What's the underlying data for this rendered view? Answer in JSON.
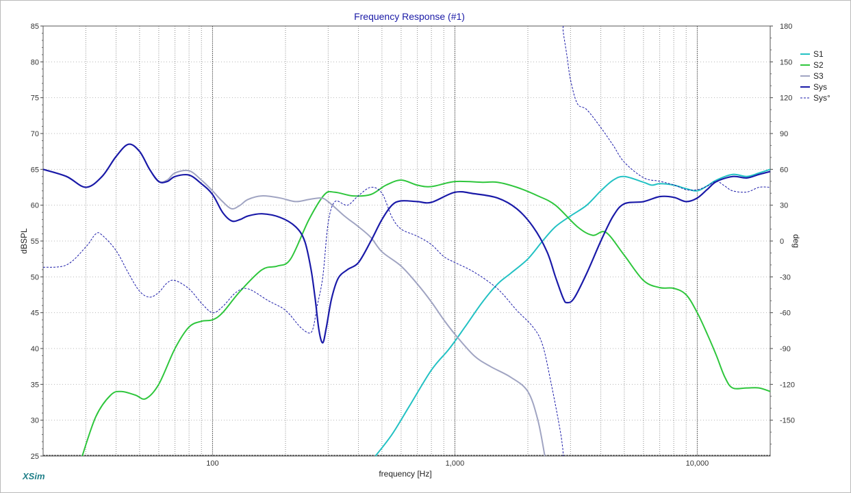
{
  "app": {
    "brand": "XSim"
  },
  "chart_data": {
    "type": "line",
    "title": "Frequency Response (#1)",
    "xlabel": "frequency [Hz]",
    "ylabel": "dBSPL",
    "y2label": "deg",
    "xscale": "log",
    "xlim": [
      20,
      20000
    ],
    "ylim": [
      25,
      85
    ],
    "y2lim": [
      -180,
      180
    ],
    "x_tick_labels": [
      {
        "value": 100,
        "label": "100"
      },
      {
        "value": 1000,
        "label": "1,000"
      },
      {
        "value": 10000,
        "label": "10,000"
      }
    ],
    "y_ticks": [
      25,
      30,
      35,
      40,
      45,
      50,
      55,
      60,
      65,
      70,
      75,
      80,
      85
    ],
    "y2_ticks": [
      -150,
      -120,
      -90,
      -60,
      -30,
      0,
      30,
      60,
      90,
      120,
      150,
      180
    ],
    "grid": true,
    "legend_position": "right",
    "series": [
      {
        "name": "S1",
        "color": "#22c1c3",
        "axis": "left",
        "style": "solid",
        "points": [
          [
            470,
            25
          ],
          [
            550,
            28
          ],
          [
            650,
            32
          ],
          [
            800,
            37
          ],
          [
            950,
            40
          ],
          [
            1100,
            43
          ],
          [
            1300,
            46.5
          ],
          [
            1500,
            49
          ],
          [
            1700,
            50.5
          ],
          [
            2000,
            52.5
          ],
          [
            2300,
            55
          ],
          [
            2600,
            57
          ],
          [
            3000,
            58.5
          ],
          [
            3500,
            60
          ],
          [
            4000,
            62
          ],
          [
            4500,
            63.5
          ],
          [
            5000,
            64
          ],
          [
            6000,
            63.2
          ],
          [
            6500,
            62.8
          ],
          [
            7000,
            63
          ],
          [
            8000,
            62.8
          ],
          [
            9000,
            62.3
          ],
          [
            10000,
            62
          ],
          [
            11000,
            62.7
          ],
          [
            12000,
            63.5
          ],
          [
            14000,
            64.3
          ],
          [
            16000,
            64
          ],
          [
            18000,
            64.5
          ],
          [
            20000,
            65
          ]
        ]
      },
      {
        "name": "S2",
        "color": "#2ec63c",
        "axis": "left",
        "style": "solid",
        "points": [
          [
            29,
            25
          ],
          [
            33,
            30.5
          ],
          [
            38,
            33.5
          ],
          [
            42,
            34
          ],
          [
            48,
            33.5
          ],
          [
            53,
            33
          ],
          [
            60,
            35
          ],
          [
            70,
            40
          ],
          [
            80,
            43
          ],
          [
            90,
            43.8
          ],
          [
            100,
            44
          ],
          [
            110,
            45
          ],
          [
            130,
            48
          ],
          [
            160,
            51
          ],
          [
            185,
            51.5
          ],
          [
            210,
            52.5
          ],
          [
            250,
            58
          ],
          [
            290,
            61.5
          ],
          [
            320,
            61.8
          ],
          [
            380,
            61.3
          ],
          [
            450,
            61.5
          ],
          [
            520,
            62.8
          ],
          [
            600,
            63.5
          ],
          [
            700,
            62.8
          ],
          [
            800,
            62.6
          ],
          [
            1000,
            63.3
          ],
          [
            1300,
            63.2
          ],
          [
            1500,
            63.2
          ],
          [
            1800,
            62.5
          ],
          [
            2200,
            61.3
          ],
          [
            2600,
            60
          ],
          [
            3200,
            57
          ],
          [
            3700,
            55.8
          ],
          [
            4200,
            56.2
          ],
          [
            5000,
            53
          ],
          [
            6000,
            49.5
          ],
          [
            7000,
            48.5
          ],
          [
            8000,
            48.4
          ],
          [
            9000,
            47.5
          ],
          [
            10000,
            45
          ],
          [
            11000,
            42
          ],
          [
            12000,
            39
          ],
          [
            13000,
            36
          ],
          [
            14000,
            34.5
          ],
          [
            16000,
            34.5
          ],
          [
            18000,
            34.5
          ],
          [
            20000,
            34
          ]
        ]
      },
      {
        "name": "S3",
        "color": "#a0a4c2",
        "axis": "left",
        "style": "solid",
        "points": [
          [
            20,
            65
          ],
          [
            25,
            64
          ],
          [
            30,
            62.5
          ],
          [
            35,
            64
          ],
          [
            40,
            66.8
          ],
          [
            45,
            68.5
          ],
          [
            50,
            67.5
          ],
          [
            55,
            65
          ],
          [
            60,
            63.3
          ],
          [
            65,
            63.5
          ],
          [
            70,
            64.5
          ],
          [
            80,
            64.8
          ],
          [
            90,
            63.5
          ],
          [
            100,
            62
          ],
          [
            110,
            60.5
          ],
          [
            120,
            59.5
          ],
          [
            130,
            60
          ],
          [
            140,
            60.8
          ],
          [
            160,
            61.3
          ],
          [
            190,
            61
          ],
          [
            220,
            60.5
          ],
          [
            250,
            60.8
          ],
          [
            280,
            61
          ],
          [
            300,
            60.5
          ],
          [
            350,
            58.5
          ],
          [
            400,
            57
          ],
          [
            450,
            55.5
          ],
          [
            500,
            53.5
          ],
          [
            600,
            51.5
          ],
          [
            700,
            49
          ],
          [
            800,
            46.5
          ],
          [
            900,
            44
          ],
          [
            1000,
            42
          ],
          [
            1200,
            39
          ],
          [
            1400,
            37.5
          ],
          [
            1700,
            36
          ],
          [
            2000,
            34
          ],
          [
            2200,
            30
          ],
          [
            2350,
            25
          ]
        ]
      },
      {
        "name": "Sys",
        "color": "#1a1aa8",
        "axis": "left",
        "style": "solid",
        "points": [
          [
            20,
            65
          ],
          [
            25,
            64
          ],
          [
            30,
            62.5
          ],
          [
            35,
            64
          ],
          [
            40,
            66.8
          ],
          [
            45,
            68.5
          ],
          [
            50,
            67.5
          ],
          [
            55,
            65
          ],
          [
            60,
            63.3
          ],
          [
            65,
            63.3
          ],
          [
            70,
            64
          ],
          [
            80,
            64.2
          ],
          [
            90,
            63
          ],
          [
            100,
            61.5
          ],
          [
            110,
            59
          ],
          [
            120,
            57.8
          ],
          [
            130,
            58
          ],
          [
            140,
            58.5
          ],
          [
            160,
            58.8
          ],
          [
            190,
            58.3
          ],
          [
            220,
            57
          ],
          [
            240,
            55
          ],
          [
            255,
            51
          ],
          [
            265,
            47
          ],
          [
            275,
            42.5
          ],
          [
            285,
            40.8
          ],
          [
            295,
            43
          ],
          [
            310,
            47
          ],
          [
            330,
            49.8
          ],
          [
            360,
            51
          ],
          [
            400,
            52
          ],
          [
            450,
            55
          ],
          [
            500,
            58
          ],
          [
            550,
            60
          ],
          [
            600,
            60.6
          ],
          [
            700,
            60.5
          ],
          [
            800,
            60.4
          ],
          [
            1000,
            61.8
          ],
          [
            1200,
            61.6
          ],
          [
            1500,
            61
          ],
          [
            1800,
            59.5
          ],
          [
            2100,
            57
          ],
          [
            2400,
            53.5
          ],
          [
            2600,
            50
          ],
          [
            2800,
            47
          ],
          [
            2900,
            46.4
          ],
          [
            3100,
            47
          ],
          [
            3500,
            50.5
          ],
          [
            4000,
            55
          ],
          [
            4500,
            58.5
          ],
          [
            5000,
            60.2
          ],
          [
            6000,
            60.5
          ],
          [
            7000,
            61.2
          ],
          [
            8000,
            61.1
          ],
          [
            9000,
            60.5
          ],
          [
            10000,
            61
          ],
          [
            11000,
            62.2
          ],
          [
            12000,
            63.3
          ],
          [
            14000,
            64
          ],
          [
            16000,
            63.8
          ],
          [
            18000,
            64.3
          ],
          [
            20000,
            64.7
          ]
        ]
      },
      {
        "name": "Sys°",
        "color": "#1a1aa8",
        "axis": "right",
        "style": "dashed",
        "points": [
          [
            20,
            -22
          ],
          [
            25,
            -20
          ],
          [
            30,
            -5
          ],
          [
            33,
            6
          ],
          [
            35,
            5
          ],
          [
            40,
            -8
          ],
          [
            45,
            -27
          ],
          [
            50,
            -42
          ],
          [
            55,
            -47
          ],
          [
            60,
            -43
          ],
          [
            65,
            -35
          ],
          [
            70,
            -33
          ],
          [
            80,
            -40
          ],
          [
            90,
            -52
          ],
          [
            100,
            -60
          ],
          [
            110,
            -55
          ],
          [
            125,
            -43
          ],
          [
            140,
            -40
          ],
          [
            170,
            -50
          ],
          [
            200,
            -58
          ],
          [
            230,
            -72
          ],
          [
            250,
            -77
          ],
          [
            260,
            -73
          ],
          [
            270,
            -55
          ],
          [
            285,
            -30
          ],
          [
            300,
            15
          ],
          [
            320,
            33
          ],
          [
            360,
            30
          ],
          [
            400,
            38
          ],
          [
            450,
            45
          ],
          [
            500,
            40
          ],
          [
            550,
            20
          ],
          [
            600,
            10
          ],
          [
            700,
            4
          ],
          [
            800,
            -3
          ],
          [
            900,
            -13
          ],
          [
            1000,
            -18
          ],
          [
            1200,
            -26
          ],
          [
            1500,
            -40
          ],
          [
            1800,
            -58
          ],
          [
            2100,
            -72
          ],
          [
            2300,
            -87
          ],
          [
            2500,
            -120
          ],
          [
            2700,
            -155
          ],
          [
            2780,
            -172
          ],
          [
            2800,
            175
          ],
          [
            2900,
            155
          ],
          [
            3000,
            135
          ],
          [
            3200,
            115
          ],
          [
            3500,
            110
          ],
          [
            4000,
            95
          ],
          [
            4500,
            80
          ],
          [
            5000,
            66
          ],
          [
            6000,
            53
          ],
          [
            7000,
            50
          ],
          [
            8000,
            47
          ],
          [
            9000,
            43
          ],
          [
            10000,
            43
          ],
          [
            11000,
            46
          ],
          [
            12000,
            50
          ],
          [
            13000,
            46
          ],
          [
            14000,
            42
          ],
          [
            16000,
            41
          ],
          [
            18000,
            45
          ],
          [
            20000,
            45
          ]
        ]
      }
    ]
  }
}
